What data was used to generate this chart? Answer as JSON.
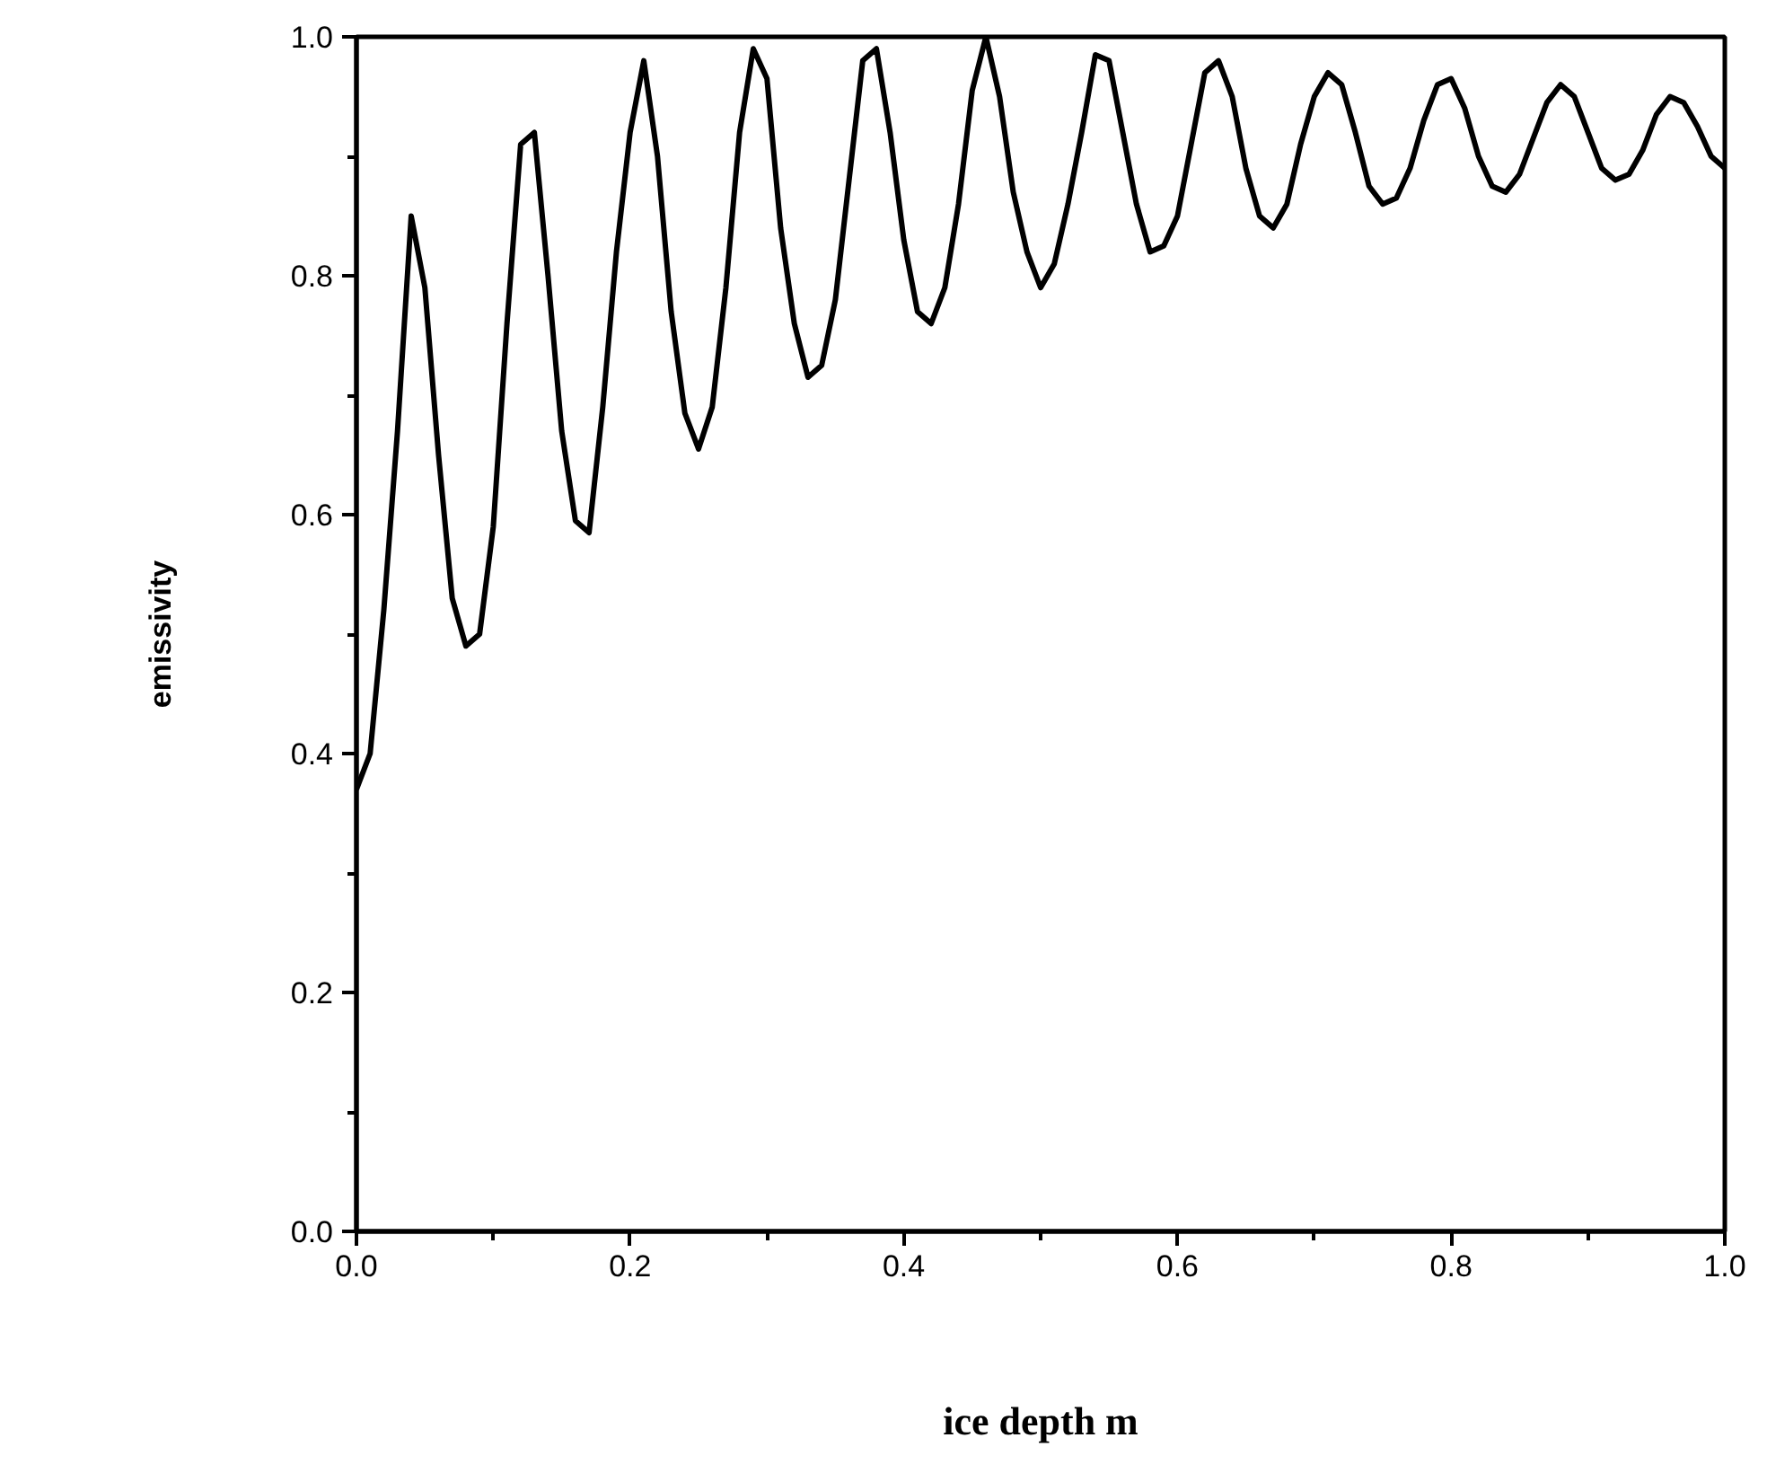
{
  "chart_data": {
    "type": "line",
    "xlabel": "ice depth m",
    "ylabel": "emissivity",
    "x": [
      0,
      0.01,
      0.02,
      0.03,
      0.04,
      0.05,
      0.06,
      0.07,
      0.08,
      0.09,
      0.1,
      0.11,
      0.12,
      0.13,
      0.14,
      0.15,
      0.16,
      0.17,
      0.18,
      0.19,
      0.2,
      0.21,
      0.22,
      0.23,
      0.24,
      0.25,
      0.26,
      0.27,
      0.28,
      0.29,
      0.3,
      0.31,
      0.32,
      0.33,
      0.34,
      0.35,
      0.36,
      0.37,
      0.38,
      0.39,
      0.4,
      0.41,
      0.42,
      0.43,
      0.44,
      0.45,
      0.46,
      0.47,
      0.48,
      0.49,
      0.5,
      0.51,
      0.52,
      0.53,
      0.54,
      0.55,
      0.56,
      0.57,
      0.58,
      0.59,
      0.6,
      0.61,
      0.62,
      0.63,
      0.64,
      0.65,
      0.66,
      0.67,
      0.68,
      0.69,
      0.7,
      0.71,
      0.72,
      0.73,
      0.74,
      0.75,
      0.76,
      0.77,
      0.78,
      0.79,
      0.8,
      0.81,
      0.82,
      0.83,
      0.84,
      0.85,
      0.86,
      0.87,
      0.88,
      0.89,
      0.9,
      0.91,
      0.92,
      0.93,
      0.94,
      0.95,
      0.96,
      0.97,
      0.98,
      0.99,
      1.0
    ],
    "series": [
      {
        "color": "#000000",
        "values": [
          0.37,
          0.4,
          0.52,
          0.67,
          0.85,
          0.79,
          0.65,
          0.53,
          0.49,
          0.5,
          0.59,
          0.76,
          0.91,
          0.92,
          0.8,
          0.67,
          0.595,
          0.585,
          0.69,
          0.82,
          0.92,
          0.98,
          0.9,
          0.77,
          0.685,
          0.655,
          0.69,
          0.79,
          0.92,
          0.99,
          0.965,
          0.84,
          0.76,
          0.715,
          0.725,
          0.78,
          0.88,
          0.98,
          0.99,
          0.92,
          0.83,
          0.77,
          0.76,
          0.79,
          0.86,
          0.955,
          1.0,
          0.95,
          0.87,
          0.82,
          0.79,
          0.81,
          0.86,
          0.92,
          0.985,
          0.98,
          0.92,
          0.86,
          0.82,
          0.825,
          0.85,
          0.91,
          0.97,
          0.98,
          0.95,
          0.89,
          0.85,
          0.84,
          0.86,
          0.91,
          0.95,
          0.97,
          0.96,
          0.92,
          0.875,
          0.86,
          0.865,
          0.89,
          0.93,
          0.96,
          0.965,
          0.94,
          0.9,
          0.875,
          0.87,
          0.885,
          0.915,
          0.945,
          0.96,
          0.95,
          0.92,
          0.89,
          0.88,
          0.885,
          0.905,
          0.935,
          0.95,
          0.945,
          0.925,
          0.9,
          0.89
        ]
      }
    ],
    "xlim": [
      0,
      1
    ],
    "ylim": [
      0,
      1
    ],
    "xticks": [
      {
        "value": 0,
        "label": "0.0"
      },
      {
        "value": 0.2,
        "label": "0.2"
      },
      {
        "value": 0.4,
        "label": "0.4"
      },
      {
        "value": 0.6,
        "label": "0.6"
      },
      {
        "value": 0.8,
        "label": "0.8"
      },
      {
        "value": 1,
        "label": "1.0"
      }
    ],
    "yticks": [
      {
        "value": 0,
        "label": "0.0"
      },
      {
        "value": 0.2,
        "label": "0.2"
      },
      {
        "value": 0.4,
        "label": "0.4"
      },
      {
        "value": 0.6,
        "label": "0.6"
      },
      {
        "value": 0.8,
        "label": "0.8"
      },
      {
        "value": 1,
        "label": "1.0"
      }
    ],
    "grid": false,
    "marker": "none",
    "line_style": "solid"
  }
}
